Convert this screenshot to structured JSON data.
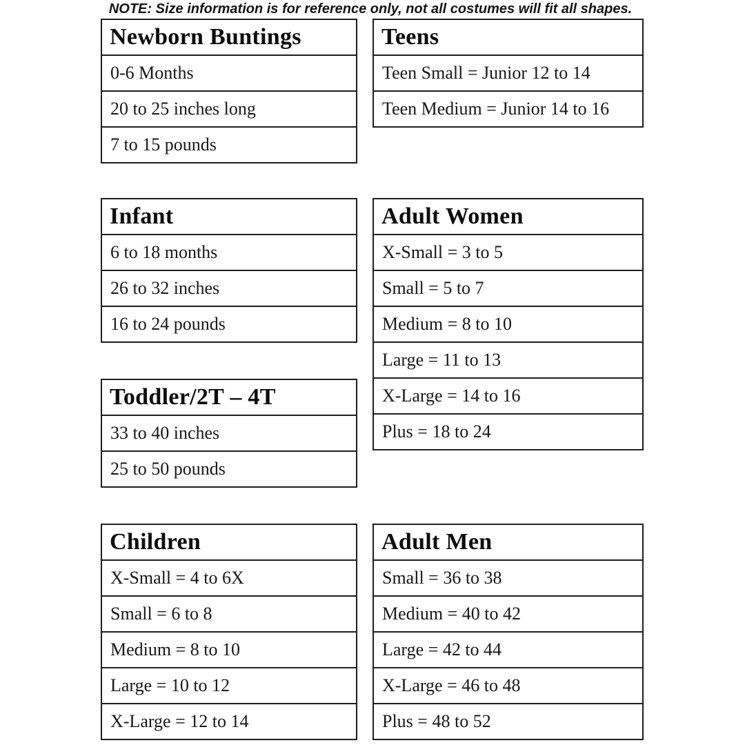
{
  "note": "NOTE: Size information is for reference only, not all costumes will fit all shapes.",
  "colors": {
    "background": "#ffffff",
    "border": "#1d1d1d",
    "text": "#171717"
  },
  "tables": {
    "newborn": {
      "title": "Newborn Buntings",
      "rows": [
        "0-6 Months",
        "20 to 25 inches long",
        "7 to 15 pounds"
      ]
    },
    "teens": {
      "title": "Teens",
      "rows": [
        "Teen Small = Junior 12 to 14",
        "Teen Medium = Junior 14 to 16"
      ]
    },
    "infant": {
      "title": "Infant",
      "rows": [
        "6 to 18 months",
        "26 to 32 inches",
        "16 to 24 pounds"
      ]
    },
    "adult_women": {
      "title": "Adult Women",
      "rows": [
        "X-Small = 3 to 5",
        "Small = 5 to 7",
        "Medium = 8 to 10",
        "Large = 11 to 13",
        "X-Large = 14 to 16",
        "Plus = 18 to 24"
      ]
    },
    "toddler": {
      "title": "Toddler/2T – 4T",
      "rows": [
        "33 to 40 inches",
        "25 to 50 pounds"
      ]
    },
    "children": {
      "title": "Children",
      "rows": [
        "X-Small = 4 to 6X",
        "Small = 6 to 8",
        "Medium = 8 to 10",
        "Large = 10 to 12",
        "X-Large = 12 to 14"
      ]
    },
    "adult_men": {
      "title": "Adult Men",
      "rows": [
        "Small = 36 to 38",
        "Medium = 40 to 42",
        "Large = 42 to 44",
        "X-Large = 46 to 48",
        "Plus = 48 to 52"
      ]
    }
  }
}
